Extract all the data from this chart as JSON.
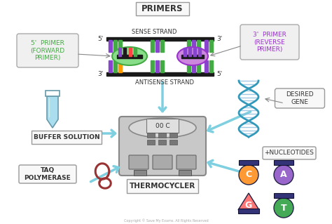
{
  "background_color": "#ffffff",
  "labels": {
    "primers": "PRIMERS",
    "thermocycler": "THERMOCYCLER",
    "buffer_solution": "BUFFER SOLUTION",
    "taq_polymerase": "TAQ\nPOLYMERASE",
    "desired_gene": "DESIRED\nGENE",
    "nucleotides": "+NUCLEOTIDES",
    "forward_primer": "5'  PRIMER\n(FORWARD\nPRIMER)",
    "reverse_primer": "3'  PRIMER\n(REVERSE\nPRIMER)",
    "sense_strand": "SENSE STRAND",
    "antisense_strand": "ANTISENSE STRAND",
    "display": "00 C"
  },
  "colors": {
    "arrow_color": "#7ecfdf",
    "green_primer_fill": "#88dd88",
    "green_primer_border": "#44aa44",
    "purple_primer_fill": "#cc88dd",
    "purple_primer_border": "#9933cc",
    "forward_box_fill": "#f0f0f0",
    "forward_box_border": "#aaaaaa",
    "forward_text": "#44aa44",
    "reverse_box_fill": "#f0f0f0",
    "reverse_box_border": "#aaaaaa",
    "reverse_text": "#9933cc",
    "strand_bar": "#1a1a1a",
    "bar_purple": "#8844cc",
    "bar_green": "#44aa44",
    "bar_orange": "#ff9900",
    "bar_blue": "#4488cc",
    "dna_blue": "#3399bb",
    "tube_fill": "#aaddee",
    "tube_border": "#6699aa",
    "taq_color": "#993333",
    "tc_body": "#c8c8c8",
    "tc_dark": "#888888",
    "tc_lid": "#d8d8d8",
    "nucleotide_C": "#ff9933",
    "nucleotide_A": "#9966cc",
    "nucleotide_G": "#ff7777",
    "nucleotide_T": "#44aa55",
    "nucleotide_cap": "#333377",
    "label_box_fill": "#f8f8f8",
    "label_box_border": "#999999",
    "label_text": "#333333"
  }
}
